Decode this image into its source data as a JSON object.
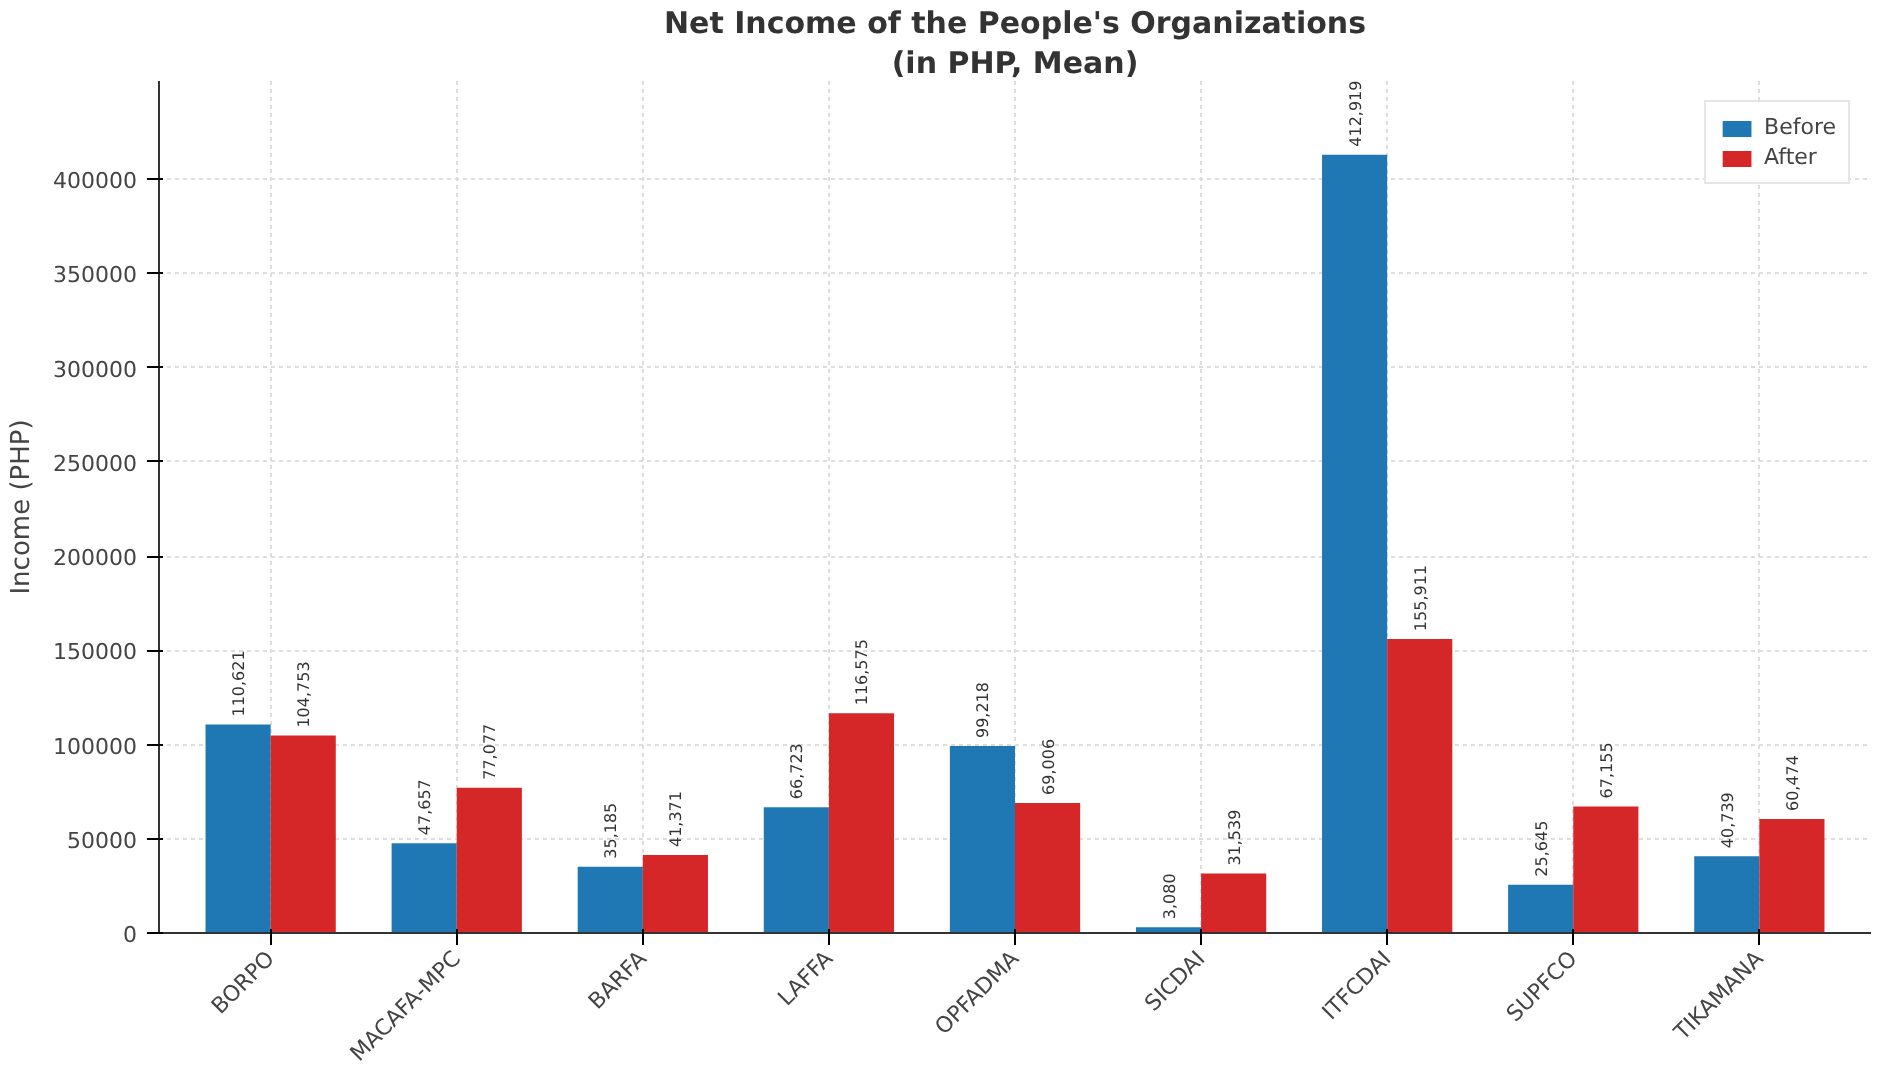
{
  "chart_data": {
    "type": "bar",
    "title": "Net Income of the People's Organizations",
    "subtitle": "(in PHP, Mean)",
    "ylabel": "Income (PHP)",
    "categories": [
      "BORPO",
      "MACAFA-MPC",
      "BARFA",
      "LAFFA",
      "OPFADMA",
      "SICDAI",
      "ITFCDAI",
      "SUPFCO",
      "TIKAMANA"
    ],
    "series": [
      {
        "name": "Before",
        "color": "#1f77b4",
        "values": [
          110621,
          47657,
          35185,
          66723,
          99218,
          3080,
          412919,
          25645,
          40739
        ],
        "value_labels": [
          "110,621",
          "47,657",
          "35,185",
          "66,723",
          "99,218",
          "3,080",
          "412,919",
          "25,645",
          "40,739"
        ]
      },
      {
        "name": "After",
        "color": "#d62728",
        "values": [
          104753,
          77077,
          41371,
          116575,
          69006,
          31539,
          155911,
          67155,
          60474
        ],
        "value_labels": [
          "104,753",
          "77,077",
          "41,371",
          "116,575",
          "69,006",
          "31,539",
          "155,911",
          "67,155",
          "60,474"
        ]
      }
    ],
    "ylim": [
      0,
      452000
    ],
    "yticks": [
      0,
      50000,
      100000,
      150000,
      200000,
      250000,
      300000,
      350000,
      400000
    ],
    "grid": true,
    "legend": "top right"
  }
}
